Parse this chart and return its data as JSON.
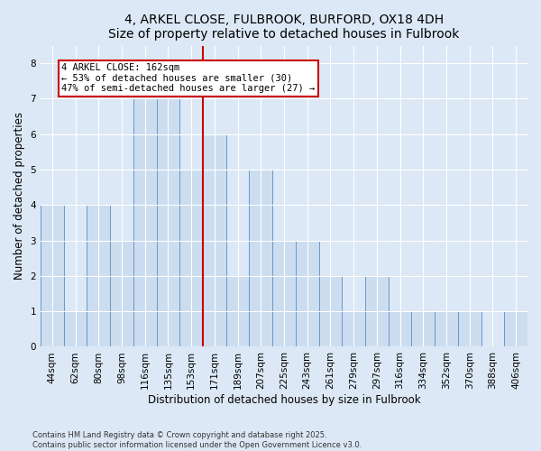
{
  "title": "4, ARKEL CLOSE, FULBROOK, BURFORD, OX18 4DH",
  "subtitle": "Size of property relative to detached houses in Fulbrook",
  "xlabel": "Distribution of detached houses by size in Fulbrook",
  "ylabel": "Number of detached properties",
  "categories": [
    "44sqm",
    "62sqm",
    "80sqm",
    "98sqm",
    "116sqm",
    "135sqm",
    "153sqm",
    "171sqm",
    "189sqm",
    "207sqm",
    "225sqm",
    "243sqm",
    "261sqm",
    "279sqm",
    "297sqm",
    "316sqm",
    "334sqm",
    "352sqm",
    "370sqm",
    "388sqm",
    "406sqm"
  ],
  "values": [
    4,
    1,
    4,
    3,
    7,
    7,
    5,
    6,
    2,
    5,
    3,
    3,
    2,
    1,
    2,
    1,
    1,
    1,
    1,
    0,
    1
  ],
  "bar_color": "#ccddef",
  "bar_edge_color": "#6699cc",
  "red_line_x": 6.5,
  "annotation_text": "4 ARKEL CLOSE: 162sqm\n← 53% of detached houses are smaller (30)\n47% of semi-detached houses are larger (27) →",
  "annotation_box_color": "#ffffff",
  "annotation_box_edge_color": "#cc0000",
  "red_line_color": "#cc0000",
  "ylim": [
    0,
    8.5
  ],
  "yticks": [
    0,
    1,
    2,
    3,
    4,
    5,
    6,
    7,
    8
  ],
  "background_color": "#dce8f5",
  "plot_background_color": "#dce8f5",
  "footer_text": "Contains HM Land Registry data © Crown copyright and database right 2025.\nContains public sector information licensed under the Open Government Licence v3.0.",
  "title_fontsize": 10,
  "axis_label_fontsize": 8.5,
  "tick_fontsize": 7.5,
  "annotation_fontsize": 7.5,
  "footer_fontsize": 6
}
